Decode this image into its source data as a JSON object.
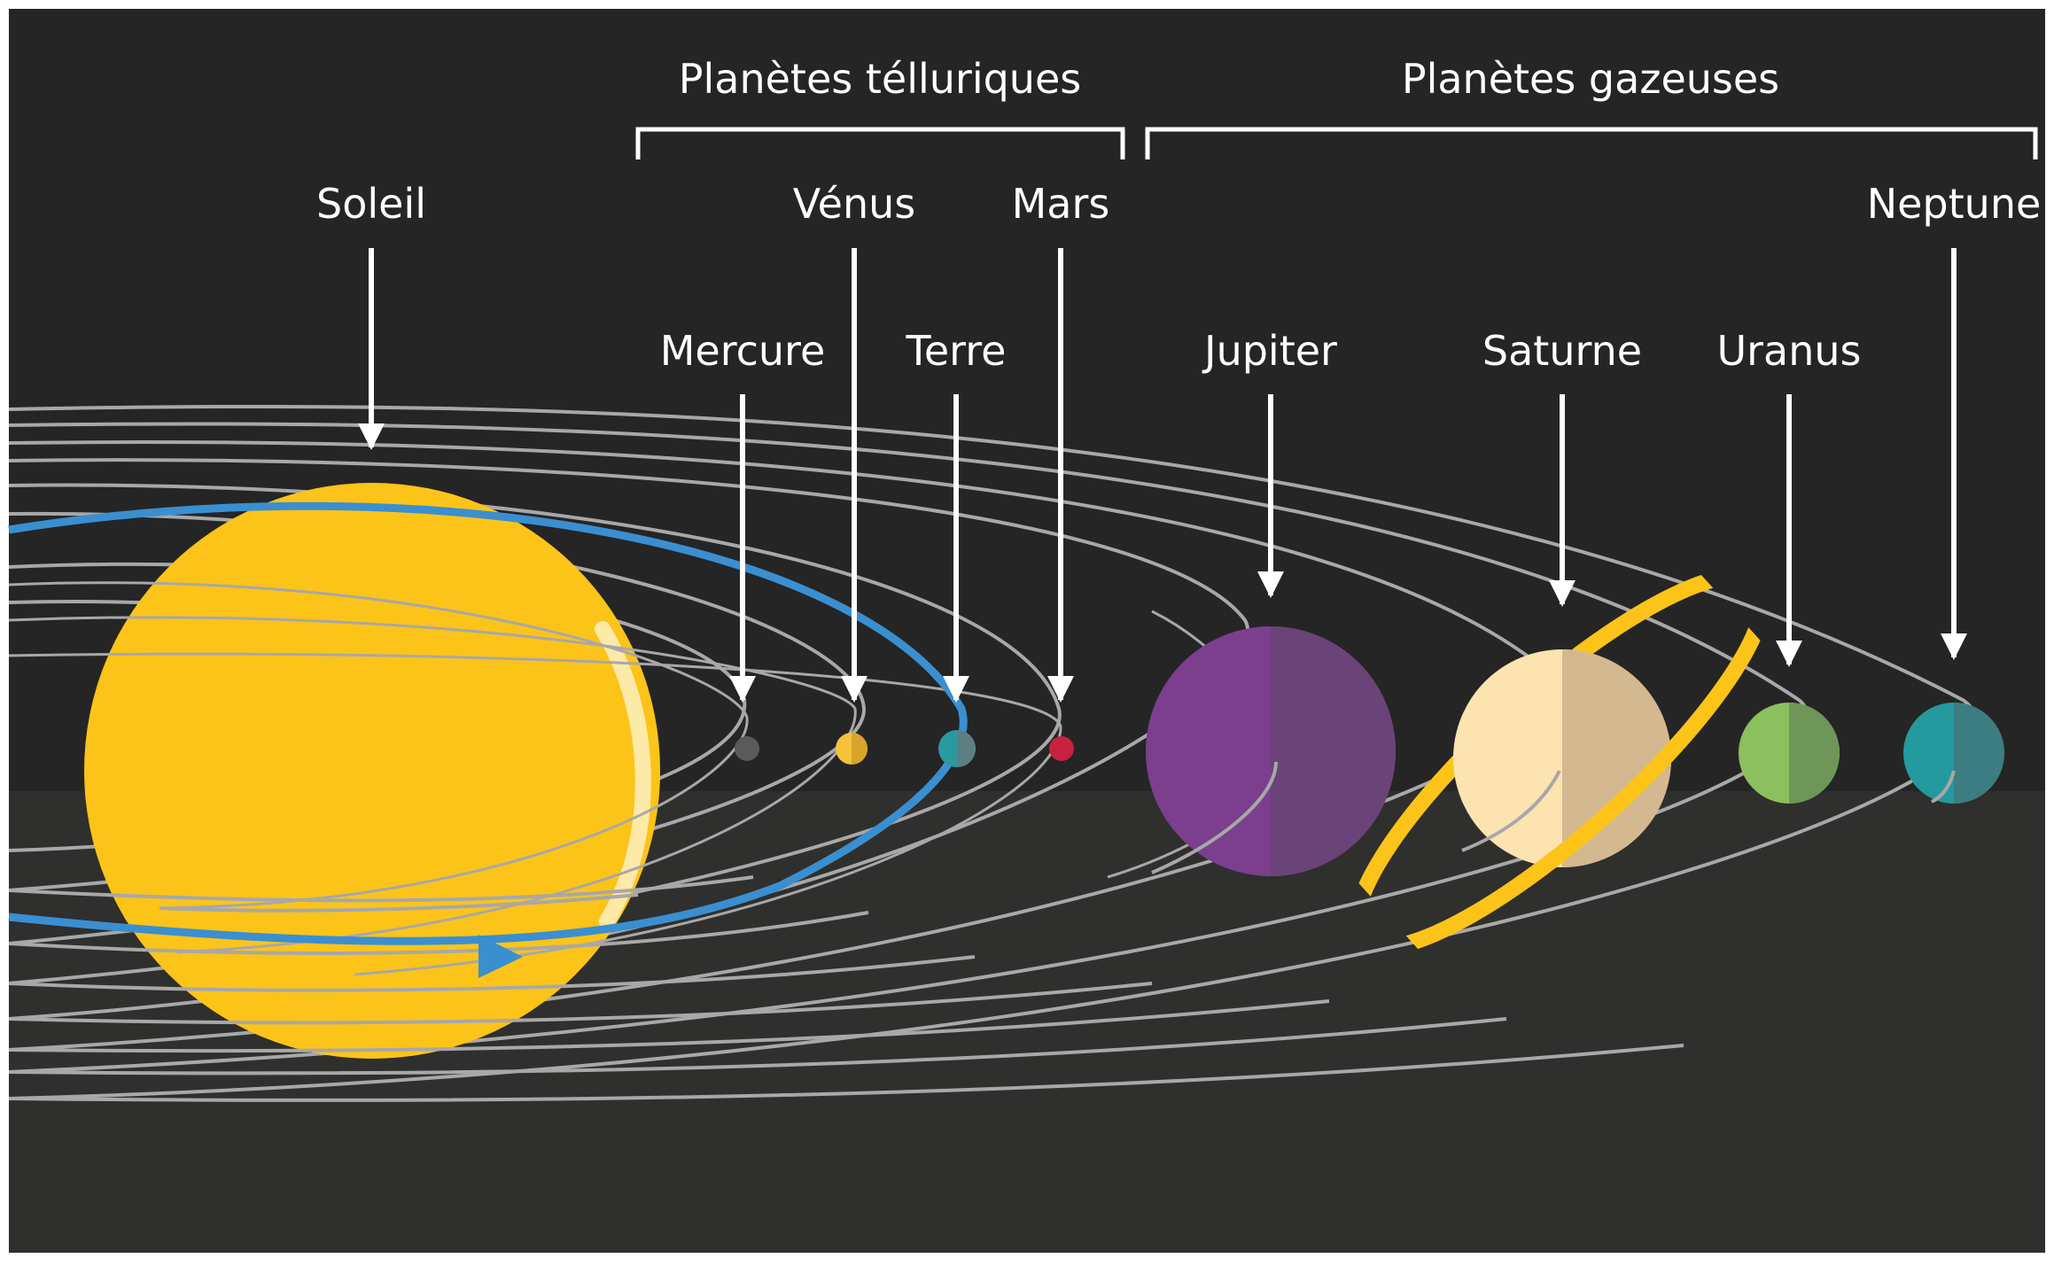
{
  "colors": {
    "background_top": "#252525",
    "background_bottom": "#2f2f2d",
    "orbit": "#a8a8a8",
    "earth_orbit": "#3a8fd0",
    "label": "#ffffff",
    "sun": "#fcc419",
    "sun_highlight": "#fde9a8",
    "mercury": "#5a5a5a",
    "venus": [
      "#f6c23a",
      "#d8a42a"
    ],
    "earth": [
      "#2a9aa0",
      "#5d7f82"
    ],
    "mars": "#c8203e",
    "jupiter": [
      "#7b3f8e",
      "#6a4478"
    ],
    "saturn": [
      "#fde3b0",
      "#d4b890"
    ],
    "saturn_ring": "#fcc419",
    "uranus": [
      "#8cc05e",
      "#6e9658"
    ],
    "neptune": [
      "#24999e",
      "#3b7d80"
    ]
  },
  "groups": {
    "telluric": "Planètes télluriques",
    "gas": "Planètes gazeuses"
  },
  "bodies": {
    "sun": "Soleil",
    "mercury": "Mercure",
    "venus": "Vénus",
    "earth": "Terre",
    "mars": "Mars",
    "jupiter": "Jupiter",
    "saturn": "Saturne",
    "uranus": "Uranus",
    "neptune": "Neptune"
  }
}
